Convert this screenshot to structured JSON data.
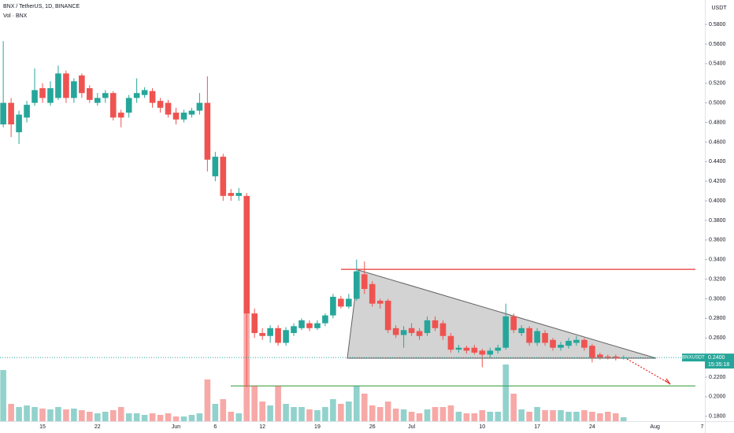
{
  "chart_data": {
    "type": "candlestick",
    "title": "BNX / TetherUS, 1D, BINANCE",
    "volume_title": "Vol · BNX",
    "currency": "USDT",
    "up_color": "#26a69a",
    "down_color": "#ef5350",
    "categories": [
      null,
      null,
      null,
      null,
      null,
      "15",
      null,
      null,
      null,
      null,
      null,
      null,
      "22",
      null,
      null,
      null,
      null,
      null,
      null,
      null,
      null,
      null,
      "Jun",
      null,
      null,
      null,
      null,
      "6",
      null,
      null,
      null,
      null,
      null,
      "12",
      null,
      null,
      null,
      null,
      null,
      null,
      "19",
      null,
      null,
      null,
      null,
      null,
      null,
      "26",
      null,
      null,
      null,
      null,
      "Jul",
      null,
      null,
      null,
      null,
      null,
      null,
      null,
      null,
      "10",
      null,
      null,
      null,
      null,
      null,
      null,
      "17",
      null,
      null,
      null,
      null,
      null,
      null,
      "24",
      null,
      null,
      null,
      null,
      null,
      null,
      null,
      "Aug",
      null,
      null,
      null,
      null,
      null,
      "7"
    ],
    "open": [
      0.478,
      0.5,
      0.47,
      0.485,
      0.5,
      0.515,
      0.5,
      0.505,
      0.53,
      0.505,
      0.528,
      0.515,
      0.5,
      0.505,
      0.51,
      0.49,
      0.49,
      0.505,
      0.508,
      0.512,
      0.502,
      0.5,
      0.49,
      0.483,
      0.488,
      0.492,
      0.5,
      0.425,
      0.445,
      0.408,
      0.405,
      0.405,
      0.285,
      0.265,
      0.262,
      0.27,
      0.255,
      0.265,
      0.27,
      0.275,
      0.27,
      0.275,
      0.283,
      0.3,
      0.292,
      0.3,
      0.325,
      0.315,
      0.298,
      0.298,
      0.27,
      0.263,
      0.27,
      0.267,
      0.265,
      0.278,
      0.275,
      0.262,
      0.248,
      0.25,
      0.25,
      0.247,
      0.243,
      0.247,
      0.25,
      0.282,
      0.265,
      0.27,
      0.255,
      0.265,
      0.258,
      0.25,
      0.252,
      0.255,
      0.258,
      0.252,
      0.243,
      0.241,
      0.241,
      0.24,
      null,
      null,
      null,
      null,
      null,
      null,
      null,
      null,
      null,
      null
    ],
    "high": [
      0.563,
      0.505,
      0.492,
      0.502,
      0.535,
      0.52,
      0.522,
      0.538,
      0.533,
      0.525,
      0.53,
      0.518,
      0.51,
      0.513,
      0.512,
      0.493,
      0.508,
      0.525,
      0.516,
      0.515,
      0.505,
      0.503,
      0.495,
      0.493,
      0.495,
      0.51,
      0.527,
      0.45,
      0.448,
      0.412,
      0.413,
      0.408,
      0.29,
      0.27,
      0.273,
      0.273,
      0.271,
      0.275,
      0.28,
      0.278,
      0.278,
      0.285,
      0.305,
      0.303,
      0.305,
      0.34,
      0.338,
      0.318,
      0.3,
      0.3,
      0.273,
      0.272,
      0.275,
      0.27,
      0.282,
      0.282,
      0.278,
      0.265,
      0.253,
      0.252,
      0.253,
      0.249,
      0.25,
      0.253,
      0.295,
      0.285,
      0.273,
      0.272,
      0.27,
      0.268,
      0.26,
      0.256,
      0.26,
      0.262,
      0.26,
      0.254,
      0.245,
      0.243,
      0.243,
      0.242,
      null,
      null,
      null,
      null,
      null,
      null,
      null,
      null,
      null,
      null
    ],
    "low": [
      0.475,
      0.465,
      0.458,
      0.48,
      0.497,
      0.5,
      0.497,
      0.503,
      0.5,
      0.5,
      0.505,
      0.5,
      0.497,
      0.5,
      0.482,
      0.475,
      0.485,
      0.5,
      0.505,
      0.495,
      0.49,
      0.485,
      0.478,
      0.48,
      0.485,
      0.488,
      0.43,
      0.42,
      0.4,
      0.4,
      0.4,
      0.21,
      0.26,
      0.258,
      0.255,
      0.252,
      0.252,
      0.262,
      0.268,
      0.267,
      0.268,
      0.272,
      0.28,
      0.29,
      0.29,
      0.298,
      0.305,
      0.292,
      0.29,
      0.265,
      0.26,
      0.25,
      0.262,
      0.258,
      0.262,
      0.267,
      0.258,
      0.245,
      0.245,
      0.244,
      0.243,
      0.23,
      0.24,
      0.244,
      0.248,
      0.265,
      0.262,
      0.252,
      0.252,
      0.252,
      0.247,
      0.247,
      0.249,
      0.252,
      0.247,
      0.235,
      0.238,
      0.238,
      0.237,
      0.238,
      null,
      null,
      null,
      null,
      null,
      null,
      null,
      null,
      null,
      null
    ],
    "close": [
      0.5,
      0.478,
      0.488,
      0.498,
      0.513,
      0.505,
      0.515,
      0.53,
      0.505,
      0.522,
      0.51,
      0.503,
      0.505,
      0.51,
      0.485,
      0.485,
      0.505,
      0.51,
      0.513,
      0.5,
      0.495,
      0.488,
      0.483,
      0.49,
      0.492,
      0.5,
      0.442,
      0.445,
      0.405,
      0.405,
      0.408,
      0.285,
      0.265,
      0.262,
      0.27,
      0.255,
      0.268,
      0.272,
      0.278,
      0.27,
      0.275,
      0.283,
      0.302,
      0.292,
      0.3,
      0.328,
      0.31,
      0.295,
      0.295,
      0.268,
      0.263,
      0.268,
      0.265,
      0.262,
      0.278,
      0.27,
      0.262,
      0.248,
      0.25,
      0.247,
      0.245,
      0.243,
      0.247,
      0.25,
      0.282,
      0.268,
      0.27,
      0.255,
      0.267,
      0.255,
      0.25,
      0.253,
      0.257,
      0.258,
      0.25,
      0.24,
      0.24,
      0.24,
      0.239,
      0.24,
      null,
      null,
      null,
      null,
      null,
      null,
      null,
      null,
      null,
      null
    ],
    "volume": [
      65,
      22,
      18,
      20,
      18,
      16,
      15,
      18,
      15,
      16,
      14,
      12,
      10,
      12,
      14,
      18,
      10,
      10,
      8,
      10,
      8,
      10,
      6,
      6,
      8,
      10,
      53,
      22,
      28,
      12,
      10,
      137,
      45,
      25,
      20,
      45,
      22,
      18,
      18,
      15,
      14,
      18,
      28,
      22,
      25,
      45,
      35,
      20,
      18,
      25,
      16,
      15,
      12,
      10,
      15,
      18,
      18,
      20,
      12,
      10,
      10,
      14,
      12,
      12,
      72,
      35,
      15,
      12,
      18,
      14,
      14,
      14,
      12,
      12,
      14,
      12,
      10,
      12,
      10,
      5,
      null,
      null,
      null,
      null,
      null,
      null,
      null,
      null,
      null,
      null
    ],
    "ylim": [
      0.175,
      0.605
    ],
    "yticks": [
      {
        "value": 0.18,
        "label": "0.1800"
      },
      {
        "value": 0.2,
        "label": "0.2000"
      },
      {
        "value": 0.22,
        "label": "0.2200"
      },
      {
        "value": 0.24,
        "label": "0.2400"
      },
      {
        "value": 0.26,
        "label": "0.2600"
      },
      {
        "value": 0.28,
        "label": "0.2800"
      },
      {
        "value": 0.3,
        "label": "0.3000"
      },
      {
        "value": 0.32,
        "label": "0.3200"
      },
      {
        "value": 0.34,
        "label": "0.3400"
      },
      {
        "value": 0.36,
        "label": "0.3600"
      },
      {
        "value": 0.38,
        "label": "0.3800"
      },
      {
        "value": 0.4,
        "label": "0.4000"
      },
      {
        "value": 0.42,
        "label": "0.4200"
      },
      {
        "value": 0.44,
        "label": "0.4400"
      },
      {
        "value": 0.46,
        "label": "0.4600"
      },
      {
        "value": 0.48,
        "label": "0.4800"
      },
      {
        "value": 0.5,
        "label": "0.5000"
      },
      {
        "value": 0.52,
        "label": "0.5200"
      },
      {
        "value": 0.54,
        "label": "0.5400"
      },
      {
        "value": 0.56,
        "label": "0.5600"
      },
      {
        "value": 0.58,
        "label": "0.5800"
      }
    ],
    "levels": [
      {
        "value": 0.33,
        "color": "#e53935"
      },
      {
        "value": 0.211,
        "color": "#43a047"
      }
    ],
    "last_price": {
      "value": 0.24,
      "label": "0.2400"
    },
    "symbol_tag": "BNXUSDT",
    "countdown": "15:35:18"
  }
}
